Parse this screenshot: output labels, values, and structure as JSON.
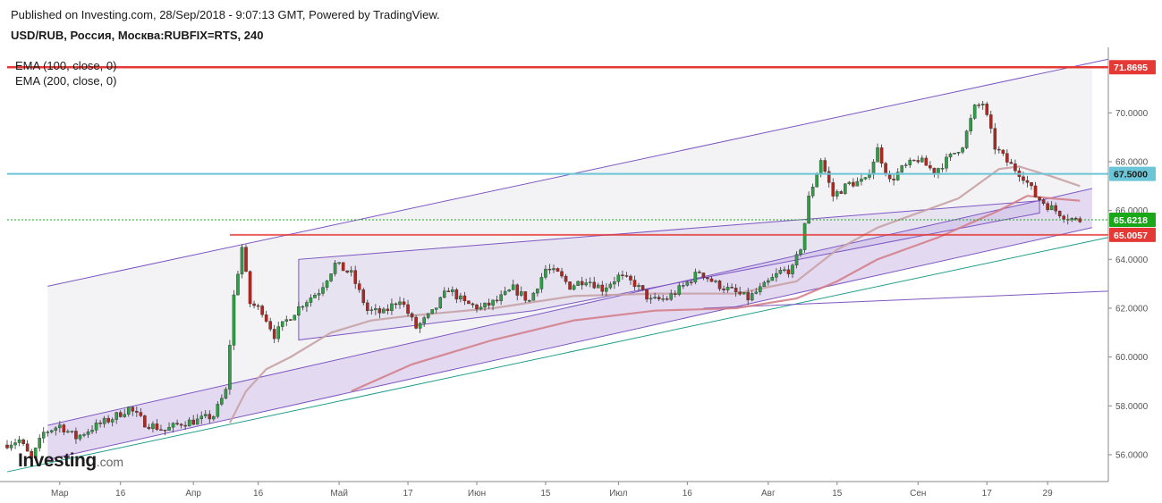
{
  "header": {
    "published": "Published on Investing.com, 28/Sep/2018 - 9:07:13 GMT, Powered by TradingView.",
    "symbol": "USD/RUB, Россия, Москва:RUBFIX=RTS, 240"
  },
  "legend": {
    "ema100": "EMA (100, close, 0)",
    "ema200": "EMA (200, close, 0)"
  },
  "logo": {
    "name": "Investing",
    "domain": ".com"
  },
  "colors": {
    "up": "#2f9e44",
    "down": "#b3261e",
    "resistance": "#e53935",
    "support_cyan": "#6cc5d6",
    "last_price": "#1aa71a",
    "channel": "#7e57c2",
    "ema100": "#d27a85",
    "ema200": "#c7a2a6",
    "trend_teal": "#1f9e8a"
  },
  "chart_data": {
    "type": "candlestick",
    "title": "USD/RUB, Россия, Москва:RUBFIX=RTS, 240",
    "ylim": [
      54.9,
      72.5
    ],
    "y_ticks": [
      56.0,
      58.0,
      60.0,
      62.0,
      64.0,
      66.0,
      68.0,
      70.0
    ],
    "x_ticks": [
      "Мар",
      "16",
      "Апр",
      "16",
      "Май",
      "17",
      "Июн",
      "15",
      "Июл",
      "16",
      "Авг",
      "15",
      "Сен",
      "17",
      "29"
    ],
    "grid": false,
    "price_badges": [
      {
        "label": "71.8695",
        "value": 71.8695,
        "kind": "resistance"
      },
      {
        "label": "67.5000",
        "value": 67.5,
        "kind": "level"
      },
      {
        "label": "65.6218",
        "value": 65.6218,
        "kind": "last"
      },
      {
        "label": "65.0057",
        "value": 65.0057,
        "kind": "resistance"
      }
    ],
    "anchors": [
      {
        "t": 0,
        "v": 56.4
      },
      {
        "t": 4,
        "v": 56.6
      },
      {
        "t": 7,
        "v": 55.8
      },
      {
        "t": 10,
        "v": 56.9
      },
      {
        "t": 14,
        "v": 57.2
      },
      {
        "t": 18,
        "v": 56.7
      },
      {
        "t": 22,
        "v": 57.1
      },
      {
        "t": 27,
        "v": 57.5
      },
      {
        "t": 31,
        "v": 57.9
      },
      {
        "t": 35,
        "v": 57.3
      },
      {
        "t": 40,
        "v": 57.0
      },
      {
        "t": 44,
        "v": 57.3
      },
      {
        "t": 48,
        "v": 57.4
      },
      {
        "t": 52,
        "v": 57.6
      },
      {
        "t": 55,
        "v": 58.6
      },
      {
        "t": 57,
        "v": 62.5
      },
      {
        "t": 59,
        "v": 64.5
      },
      {
        "t": 61,
        "v": 62.2
      },
      {
        "t": 64,
        "v": 61.9
      },
      {
        "t": 67,
        "v": 60.9
      },
      {
        "t": 70,
        "v": 61.5
      },
      {
        "t": 74,
        "v": 62.2
      },
      {
        "t": 78,
        "v": 62.7
      },
      {
        "t": 82,
        "v": 63.8
      },
      {
        "t": 86,
        "v": 63.4
      },
      {
        "t": 90,
        "v": 61.9
      },
      {
        "t": 94,
        "v": 61.8
      },
      {
        "t": 98,
        "v": 62.4
      },
      {
        "t": 102,
        "v": 61.2
      },
      {
        "t": 106,
        "v": 61.8
      },
      {
        "t": 110,
        "v": 62.8
      },
      {
        "t": 114,
        "v": 62.2
      },
      {
        "t": 118,
        "v": 62.0
      },
      {
        "t": 122,
        "v": 62.3
      },
      {
        "t": 126,
        "v": 62.8
      },
      {
        "t": 130,
        "v": 62.3
      },
      {
        "t": 134,
        "v": 63.6
      },
      {
        "t": 137,
        "v": 63.4
      },
      {
        "t": 140,
        "v": 62.9
      },
      {
        "t": 144,
        "v": 63.2
      },
      {
        "t": 148,
        "v": 62.8
      },
      {
        "t": 152,
        "v": 63.3
      },
      {
        "t": 156,
        "v": 63.0
      },
      {
        "t": 160,
        "v": 62.3
      },
      {
        "t": 164,
        "v": 62.4
      },
      {
        "t": 168,
        "v": 62.9
      },
      {
        "t": 172,
        "v": 63.5
      },
      {
        "t": 176,
        "v": 63.0
      },
      {
        "t": 180,
        "v": 62.7
      },
      {
        "t": 184,
        "v": 62.4
      },
      {
        "t": 188,
        "v": 62.9
      },
      {
        "t": 192,
        "v": 63.5
      },
      {
        "t": 195,
        "v": 63.6
      },
      {
        "t": 197,
        "v": 64.5
      },
      {
        "t": 199,
        "v": 66.5
      },
      {
        "t": 202,
        "v": 68.1
      },
      {
        "t": 205,
        "v": 66.6
      },
      {
        "t": 209,
        "v": 67.1
      },
      {
        "t": 213,
        "v": 67.2
      },
      {
        "t": 216,
        "v": 68.5
      },
      {
        "t": 219,
        "v": 67.2
      },
      {
        "t": 222,
        "v": 67.7
      },
      {
        "t": 226,
        "v": 68.1
      },
      {
        "t": 230,
        "v": 67.6
      },
      {
        "t": 234,
        "v": 68.2
      },
      {
        "t": 237,
        "v": 68.7
      },
      {
        "t": 240,
        "v": 70.2
      },
      {
        "t": 242,
        "v": 70.4
      },
      {
        "t": 245,
        "v": 68.6
      },
      {
        "t": 248,
        "v": 68.0
      },
      {
        "t": 252,
        "v": 67.4
      },
      {
        "t": 255,
        "v": 66.6
      },
      {
        "t": 258,
        "v": 66.2
      },
      {
        "t": 262,
        "v": 65.8
      },
      {
        "t": 265,
        "v": 65.6
      }
    ],
    "ema100_points": [
      {
        "t": 55,
        "v": 57.3
      },
      {
        "t": 59,
        "v": 58.6
      },
      {
        "t": 64,
        "v": 59.5
      },
      {
        "t": 70,
        "v": 60.0
      },
      {
        "t": 80,
        "v": 61.0
      },
      {
        "t": 90,
        "v": 61.5
      },
      {
        "t": 100,
        "v": 61.7
      },
      {
        "t": 120,
        "v": 62.0
      },
      {
        "t": 140,
        "v": 62.5
      },
      {
        "t": 160,
        "v": 62.6
      },
      {
        "t": 180,
        "v": 62.6
      },
      {
        "t": 195,
        "v": 63.1
      },
      {
        "t": 205,
        "v": 64.4
      },
      {
        "t": 215,
        "v": 65.3
      },
      {
        "t": 225,
        "v": 65.9
      },
      {
        "t": 235,
        "v": 66.5
      },
      {
        "t": 245,
        "v": 67.7
      },
      {
        "t": 250,
        "v": 67.8
      },
      {
        "t": 258,
        "v": 67.4
      },
      {
        "t": 265,
        "v": 67.0
      }
    ],
    "ema200_points": [
      {
        "t": 85,
        "v": 58.6
      },
      {
        "t": 100,
        "v": 59.7
      },
      {
        "t": 120,
        "v": 60.7
      },
      {
        "t": 140,
        "v": 61.5
      },
      {
        "t": 160,
        "v": 61.9
      },
      {
        "t": 180,
        "v": 62.0
      },
      {
        "t": 195,
        "v": 62.4
      },
      {
        "t": 205,
        "v": 63.1
      },
      {
        "t": 215,
        "v": 64.0
      },
      {
        "t": 230,
        "v": 64.9
      },
      {
        "t": 245,
        "v": 66.0
      },
      {
        "t": 252,
        "v": 66.6
      },
      {
        "t": 258,
        "v": 66.5
      },
      {
        "t": 265,
        "v": 66.4
      }
    ],
    "channel_upper": [
      {
        "t": 10,
        "v": 62.9
      },
      {
        "t": 272,
        "v": 72.2
      }
    ],
    "channel_lower": [
      {
        "t": 10,
        "v": 57.2
      },
      {
        "t": 268,
        "v": 66.9
      }
    ],
    "channel_bottom": [
      {
        "t": 10,
        "v": 55.8
      },
      {
        "t": 268,
        "v": 65.3
      }
    ],
    "teal_trend": [
      {
        "t": 0,
        "v": 55.3
      },
      {
        "t": 272,
        "v": 64.9
      }
    ],
    "long_trend": [
      {
        "t": 172,
        "v": 62.0
      },
      {
        "t": 272,
        "v": 62.7
      }
    ],
    "triangle": [
      {
        "t": 72,
        "v": 60.7
      },
      {
        "t": 72,
        "v": 64.0
      },
      {
        "t": 255,
        "v": 66.4
      },
      {
        "t": 255,
        "v": 65.9
      },
      {
        "t": 130,
        "v": 61.9
      }
    ],
    "resistance_short": {
      "t_start": 55,
      "v": 65.0057
    },
    "x_tick_positions": [
      {
        "label": "Мар",
        "t": 13
      },
      {
        "label": "16",
        "t": 28
      },
      {
        "label": "Апр",
        "t": 46
      },
      {
        "label": "16",
        "t": 62
      },
      {
        "label": "Май",
        "t": 82
      },
      {
        "label": "17",
        "t": 99
      },
      {
        "label": "Июн",
        "t": 116
      },
      {
        "label": "15",
        "t": 133
      },
      {
        "label": "Июл",
        "t": 151
      },
      {
        "label": "16",
        "t": 168
      },
      {
        "label": "Авг",
        "t": 188
      },
      {
        "label": "15",
        "t": 205
      },
      {
        "label": "Сен",
        "t": 225
      },
      {
        "label": "17",
        "t": 242
      },
      {
        "label": "29",
        "t": 257
      }
    ],
    "t_range": [
      0,
      272
    ]
  }
}
